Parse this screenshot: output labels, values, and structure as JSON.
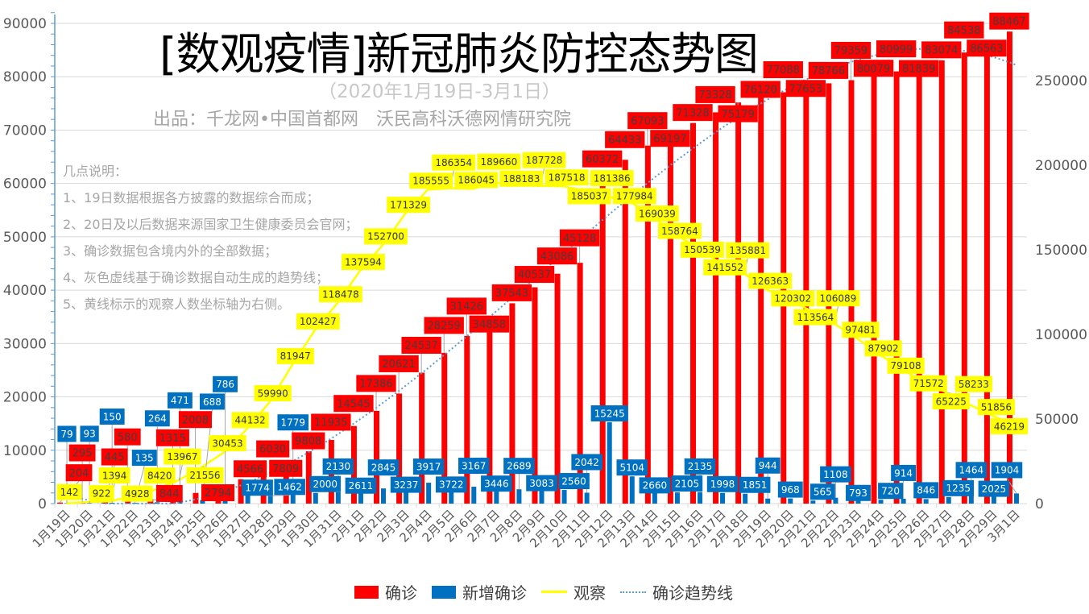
{
  "header": {
    "title": "[数观疫情]新冠肺炎防控态势图",
    "subtitle": "（2020年1月19日-3月1日）",
    "credit": "出品：千龙网•中国首都网　沃民高科沃德网情研究院"
  },
  "notes": {
    "heading": "几点说明：",
    "items": [
      "1、19日数据根据各方披露的数据综合而成；",
      "2、20日及以后数据来源国家卫生健康委员会官网；",
      "3、确诊数据包含境内外的全部数据；",
      "4、灰色虚线基于确诊数据自动生成的趋势线；",
      "5、黄线标示的观察人数坐标轴为右侧。"
    ]
  },
  "legend": [
    "确诊",
    "新增确诊",
    "观察",
    "确诊趋势线"
  ],
  "chart_data": {
    "type": "bar",
    "categories": [
      "1月19日",
      "1月20日",
      "1月21日",
      "1月22日",
      "1月23日",
      "1月24日",
      "1月25日",
      "1月26日",
      "1月27日",
      "1月28日",
      "1月29日",
      "1月30日",
      "1月31日",
      "2月1日",
      "2月2日",
      "2月3日",
      "2月4日",
      "2月5日",
      "2月6日",
      "2月7日",
      "2月8日",
      "2月9日",
      "2月10日",
      "2月11日",
      "2月12日",
      "2月13日",
      "2月14日",
      "2月15日",
      "2月16日",
      "2月17日",
      "2月18日",
      "2月19日",
      "2月20日",
      "2月21日",
      "2月22日",
      "2月23日",
      "2月24日",
      "2月25日",
      "2月26日",
      "2月27日",
      "2月28日",
      "2月29日",
      "3月1日"
    ],
    "series": [
      {
        "name": "确诊",
        "type": "bar",
        "axis": "left",
        "color": "#ff0000",
        "values": [
          204,
          295,
          445,
          580,
          844,
          1315,
          2008,
          2794,
          4566,
          6030,
          7809,
          9808,
          11935,
          14545,
          17386,
          20621,
          24537,
          28259,
          31426,
          34858,
          37543,
          40537,
          43086,
          45128,
          60372,
          64433,
          67093,
          69197,
          71328,
          73328,
          75179,
          76120,
          77088,
          77653,
          78766,
          79359,
          80079,
          80999,
          81839,
          83074,
          84538,
          86563,
          88467
        ]
      },
      {
        "name": "新增确诊",
        "type": "bar",
        "axis": "left",
        "color": "#0070c0",
        "values": [
          79,
          93,
          150,
          135,
          264,
          471,
          688,
          786,
          1774,
          1462,
          1779,
          2000,
          2130,
          2611,
          2845,
          3237,
          3917,
          3722,
          3167,
          3446,
          2689,
          3083,
          2560,
          2042,
          15245,
          5104,
          2660,
          2105,
          2135,
          1998,
          1851,
          944,
          968,
          565,
          1108,
          793,
          720,
          914,
          846,
          1235,
          1464,
          2025,
          1904
        ]
      },
      {
        "name": "观察",
        "type": "line",
        "axis": "right",
        "color": "#ffff00",
        "values": [
          142,
          922,
          1394,
          4928,
          8420,
          13967,
          21556,
          30453,
          44132,
          59990,
          81947,
          102427,
          118478,
          137594,
          152700,
          171329,
          185555,
          186354,
          186045,
          189660,
          188183,
          187728,
          187518,
          185037,
          181386,
          177984,
          169039,
          158764,
          150539,
          141552,
          135881,
          126363,
          120302,
          113564,
          106089,
          97481,
          87902,
          79108,
          71572,
          65225,
          58233,
          51856,
          46219
        ]
      },
      {
        "name": "确诊趋势线",
        "type": "trendline",
        "of": "确诊",
        "color": "#5b9bd5",
        "style": "dotted"
      }
    ],
    "left_axis": {
      "ylim": [
        0,
        90000
      ],
      "ticks": [
        "0",
        "10000",
        "20000",
        "30000",
        "40000",
        "50000",
        "60000",
        "70000",
        "80000",
        "90000"
      ]
    },
    "right_axis": {
      "ylim": [
        0,
        283800
      ],
      "ticks": [
        "0",
        "50000",
        "100000",
        "150000",
        "200000",
        "250000"
      ]
    },
    "grid": true,
    "legend_position": "bottom"
  }
}
